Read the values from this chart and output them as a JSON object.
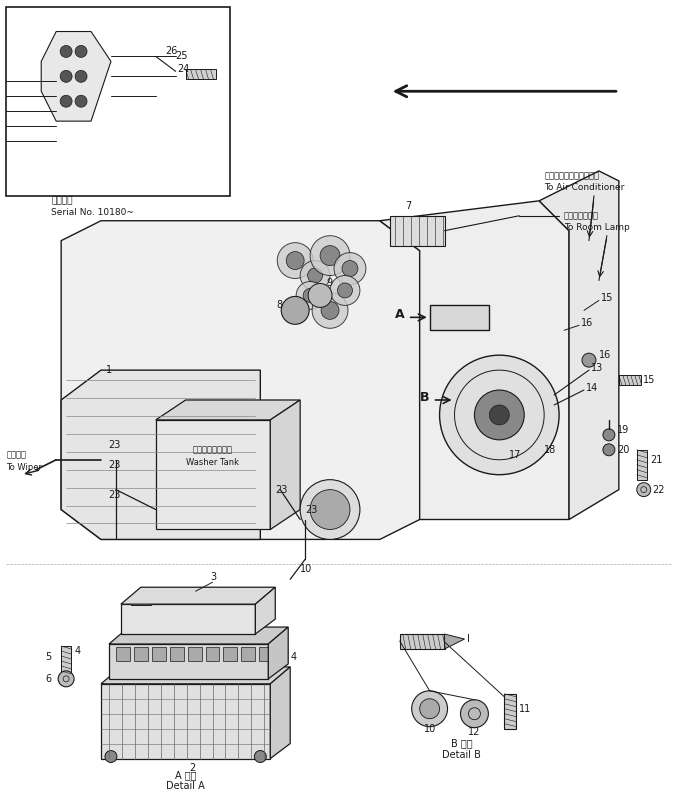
{
  "bg_color": "#ffffff",
  "line_color": "#1a1a1a",
  "fig_width": 6.77,
  "fig_height": 7.99,
  "dpi": 100,
  "inset_label_ja": "適用号機",
  "inset_label_en": "Serial No. 10180~",
  "wiper_label_ja": "ワイパへ",
  "wiper_label_en": "To Wiper",
  "ac_label_ja": "エアーコンディショナへ",
  "ac_label_en": "To Air Conditioner",
  "lamp_label_ja": "ルームランプへ",
  "lamp_label_en": "To Room Lamp",
  "washer_label_ja": "ウォッシャタンク",
  "washer_label_en": "Washer Tank",
  "detail_a_ja": "A 詳細",
  "detail_a_en": "Detail A",
  "detail_b_ja": "B 詳細",
  "detail_b_en": "Detail B"
}
